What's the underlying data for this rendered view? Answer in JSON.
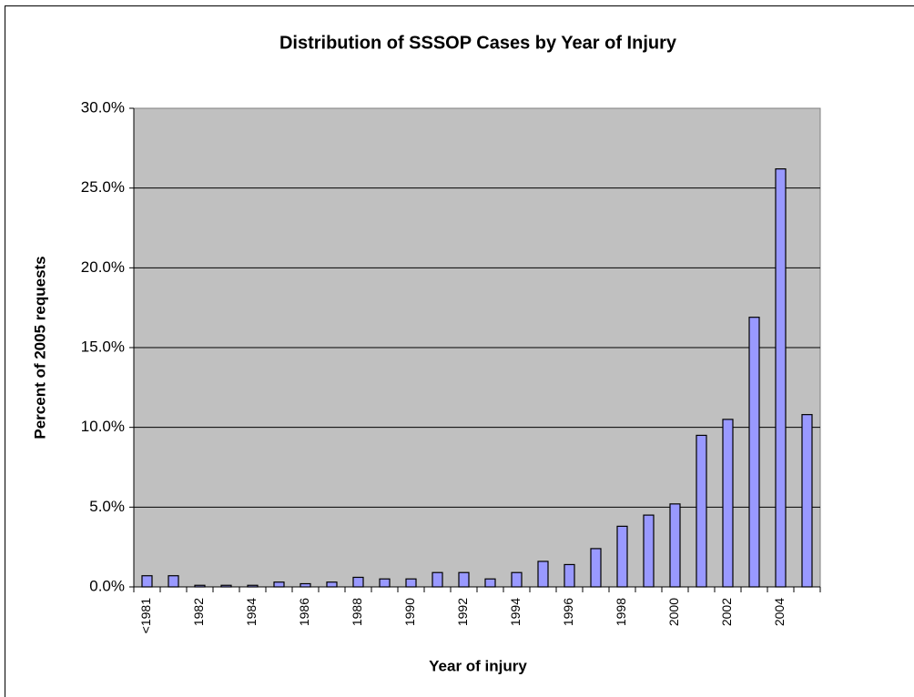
{
  "chart_data": {
    "type": "bar",
    "title": "Distribution of SSSOP Cases by Year of Injury",
    "x_label": "Year of injury",
    "y_label": "Percent of 2005 requests",
    "categories": [
      "<1981",
      null,
      "1982",
      null,
      "1984",
      null,
      "1986",
      null,
      "1988",
      null,
      "1990",
      null,
      "1992",
      null,
      "1994",
      null,
      "1996",
      null,
      "1998",
      null,
      "2000",
      null,
      "2002",
      null,
      "2004",
      null
    ],
    "values": [
      0.7,
      0.7,
      0.1,
      0.1,
      0.1,
      0.3,
      0.2,
      0.3,
      0.6,
      0.5,
      0.5,
      0.9,
      0.9,
      0.5,
      0.9,
      1.6,
      1.4,
      2.4,
      3.8,
      4.5,
      5.2,
      9.5,
      10.5,
      16.9,
      26.2,
      10.8
    ],
    "color": "#9999ff",
    "ylim": [
      0,
      30
    ],
    "yticks": [
      {
        "value": 0,
        "label": "0.0%"
      },
      {
        "value": 5,
        "label": "5.0%"
      },
      {
        "value": 10,
        "label": "10.0%"
      },
      {
        "value": 15,
        "label": "15.0%"
      },
      {
        "value": 20,
        "label": "20.0%"
      },
      {
        "value": 25,
        "label": "25.0%"
      },
      {
        "value": 30,
        "label": "30.0%"
      }
    ],
    "grid": true
  }
}
